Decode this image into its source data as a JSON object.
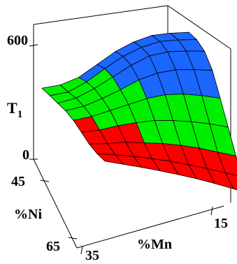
{
  "chart_data": {
    "type": "surface3d",
    "title": "",
    "zlabel_main": "T",
    "zlabel_sub": "1",
    "xlabel": "%Ni",
    "ylabel": "%Mn",
    "z_ticks": [
      "600",
      "0"
    ],
    "x_ticks": [
      "45",
      "65"
    ],
    "y_ticks": [
      "35",
      "15"
    ],
    "zlim": [
      0,
      600
    ],
    "color_bands": [
      {
        "range": [
          0,
          200
        ],
        "color": "#ff0000"
      },
      {
        "range": [
          200,
          400
        ],
        "color": "#00ee00"
      },
      {
        "range": [
          400,
          600
        ],
        "color": "#1a66ff"
      }
    ],
    "grid_lines": "#000000",
    "surface_rows": [
      [
        330,
        345,
        380,
        440,
        500,
        545,
        575,
        585,
        590
      ],
      [
        300,
        320,
        370,
        435,
        495,
        540,
        570,
        580,
        585
      ],
      [
        270,
        300,
        350,
        410,
        470,
        520,
        545,
        555,
        560
      ],
      [
        240,
        270,
        315,
        365,
        420,
        460,
        485,
        495,
        500
      ],
      [
        200,
        230,
        270,
        310,
        350,
        380,
        395,
        400,
        400
      ],
      [
        150,
        175,
        210,
        240,
        265,
        280,
        290,
        295,
        295
      ],
      [
        100,
        120,
        145,
        160,
        175,
        185,
        190,
        190,
        190
      ],
      [
        60,
        75,
        90,
        100,
        110,
        115,
        118,
        120,
        120
      ],
      [
        30,
        40,
        50,
        58,
        65,
        70,
        72,
        72,
        72
      ]
    ]
  }
}
